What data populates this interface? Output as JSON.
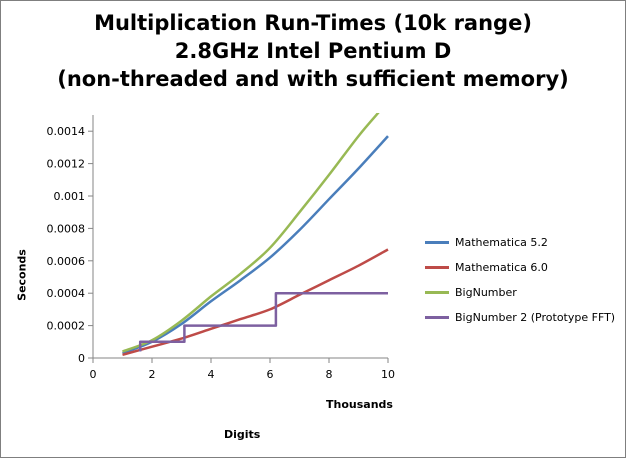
{
  "chart_data": {
    "type": "line",
    "title_lines": [
      "Multiplication Run-Times (10k range)",
      "2.8GHz Intel Pentium D",
      "(non-threaded and with sufficient memory)"
    ],
    "xlabel": "Thousands",
    "xlabel_secondary": "Digits",
    "ylabel": "Seconds",
    "xlim": [
      0,
      10
    ],
    "ylim": [
      0,
      0.0015
    ],
    "xticks": [
      0,
      2,
      4,
      6,
      8,
      10
    ],
    "yticks": [
      0,
      0.0002,
      0.0004,
      0.0006,
      0.0008,
      0.001,
      0.0012,
      0.0014
    ],
    "xtick_labels": [
      "0",
      "2",
      "4",
      "6",
      "8",
      "10"
    ],
    "ytick_labels": [
      "0",
      "0.0002",
      "0.0004",
      "0.0006",
      "0.0008",
      "0.001",
      "0.0012",
      "0.0014"
    ],
    "grid": false,
    "legend_position": "right",
    "series": [
      {
        "name": "Mathematica 5.2",
        "color": "#4a7ebb",
        "step": false,
        "x": [
          1,
          2,
          3,
          4,
          5,
          6,
          7,
          8,
          9,
          10
        ],
        "y": [
          3e-05,
          0.0001,
          0.00021,
          0.00035,
          0.00048,
          0.00062,
          0.00079,
          0.00098,
          0.00117,
          0.00137
        ]
      },
      {
        "name": "Mathematica 6.0",
        "color": "#be4b48",
        "step": false,
        "x": [
          1,
          2,
          3,
          4,
          5,
          6,
          7,
          8,
          9,
          10
        ],
        "y": [
          2e-05,
          7e-05,
          0.00012,
          0.00018,
          0.00024,
          0.0003,
          0.00039,
          0.00048,
          0.00057,
          0.00067
        ]
      },
      {
        "name": "BigNumber",
        "color": "#98b954",
        "step": false,
        "x": [
          1,
          2,
          3,
          4,
          5,
          6,
          7,
          8,
          9,
          9.7
        ],
        "y": [
          4e-05,
          0.00011,
          0.00023,
          0.00038,
          0.00052,
          0.00068,
          0.0009,
          0.00113,
          0.00137,
          0.00152
        ]
      },
      {
        "name": "BigNumber 2 (Prototype FFT)",
        "color": "#7d60a0",
        "step": true,
        "x": [
          1.6,
          1.6,
          3.1,
          3.1,
          6.2,
          6.2,
          10
        ],
        "y": [
          4e-05,
          0.0001,
          0.0001,
          0.0002,
          0.0002,
          0.0004,
          0.0004
        ]
      }
    ]
  }
}
